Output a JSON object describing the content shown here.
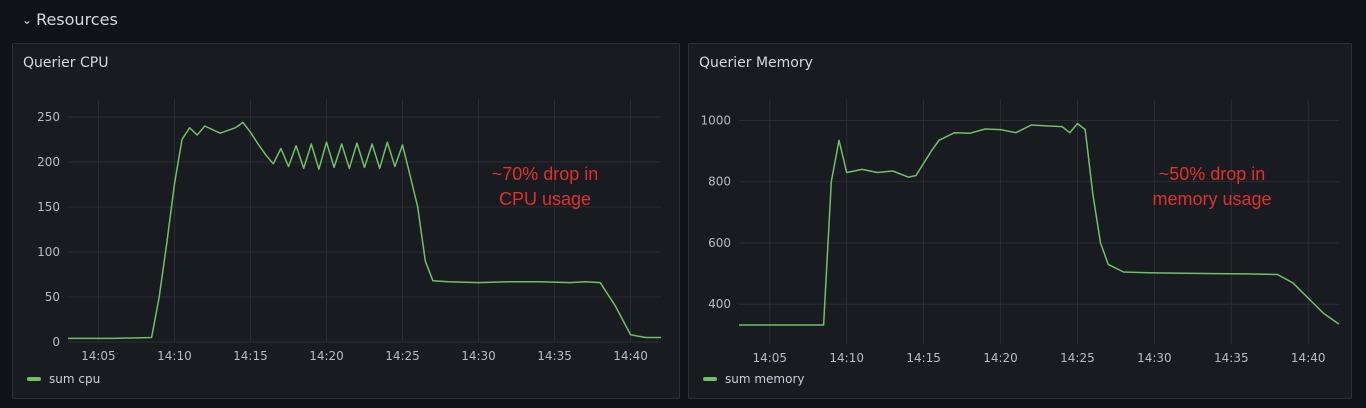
{
  "row": {
    "title": "Resources",
    "chevron_icon": "chevron-down-icon"
  },
  "colors": {
    "series": "#73bf69",
    "annotation": "#e02f2f",
    "background": "#111217",
    "panel": "#181b1f"
  },
  "chart_data": [
    {
      "type": "line",
      "title": "Querier CPU",
      "xlabel": "",
      "ylabel": "",
      "x_ticks": [
        "14:05",
        "14:10",
        "14:15",
        "14:20",
        "14:25",
        "14:30",
        "14:35",
        "14:40"
      ],
      "y_ticks": [
        0,
        50,
        100,
        150,
        200,
        250
      ],
      "xlim": [
        "14:03",
        "14:42"
      ],
      "ylim": [
        0,
        270
      ],
      "grid": true,
      "legend": "bottom-left",
      "annotation": [
        "~70% drop in",
        "CPU usage"
      ],
      "series": [
        {
          "name": "sum cpu",
          "x": [
            "14:03",
            "14:06",
            "14:08:30",
            "14:09",
            "14:09:30",
            "14:10",
            "14:10:30",
            "14:11",
            "14:11:30",
            "14:12",
            "14:13",
            "14:14",
            "14:14:30",
            "14:15",
            "14:15:30",
            "14:16",
            "14:16:30",
            "14:17",
            "14:17:30",
            "14:18",
            "14:18:30",
            "14:19",
            "14:19:30",
            "14:20",
            "14:20:30",
            "14:21",
            "14:21:30",
            "14:22",
            "14:22:30",
            "14:23",
            "14:23:30",
            "14:24",
            "14:24:30",
            "14:25",
            "14:25:30",
            "14:26",
            "14:26:30",
            "14:27",
            "14:28",
            "14:30",
            "14:32",
            "14:34",
            "14:36",
            "14:37",
            "14:38",
            "14:39",
            "14:40",
            "14:41",
            "14:42"
          ],
          "y": [
            4,
            4,
            5,
            50,
            110,
            175,
            225,
            238,
            230,
            240,
            232,
            238,
            244,
            233,
            220,
            208,
            198,
            215,
            195,
            218,
            193,
            220,
            192,
            222,
            194,
            220,
            193,
            221,
            194,
            220,
            193,
            222,
            195,
            219,
            185,
            150,
            90,
            68,
            67,
            66,
            67,
            67,
            66,
            67,
            66,
            40,
            8,
            5,
            5
          ]
        }
      ]
    },
    {
      "type": "line",
      "title": "Querier Memory",
      "xlabel": "",
      "ylabel": "",
      "x_ticks": [
        "14:05",
        "14:10",
        "14:15",
        "14:20",
        "14:25",
        "14:30",
        "14:35",
        "14:40"
      ],
      "y_ticks": [
        400,
        600,
        800,
        1000
      ],
      "xlim": [
        "14:03",
        "14:42"
      ],
      "ylim": [
        270,
        1070
      ],
      "grid": true,
      "legend": "bottom-left",
      "annotation": [
        "~50% drop in",
        "memory usage"
      ],
      "series": [
        {
          "name": "sum memory",
          "x": [
            "14:03",
            "14:06",
            "14:08:30",
            "14:09",
            "14:09:30",
            "14:10",
            "14:11",
            "14:12",
            "14:13",
            "14:14",
            "14:14:30",
            "14:15",
            "14:15:30",
            "14:16",
            "14:17",
            "14:18",
            "14:19",
            "14:20",
            "14:21",
            "14:22",
            "14:23",
            "14:24",
            "14:24:30",
            "14:25",
            "14:25:30",
            "14:26",
            "14:26:30",
            "14:27",
            "14:28",
            "14:30",
            "14:32",
            "14:34",
            "14:36",
            "14:38",
            "14:39",
            "14:40",
            "14:41",
            "14:42"
          ],
          "y": [
            332,
            332,
            332,
            800,
            935,
            830,
            840,
            830,
            835,
            815,
            820,
            860,
            900,
            935,
            960,
            958,
            972,
            970,
            960,
            985,
            982,
            980,
            960,
            990,
            970,
            760,
            600,
            530,
            505,
            502,
            501,
            500,
            499,
            497,
            470,
            420,
            370,
            335
          ]
        }
      ]
    }
  ]
}
